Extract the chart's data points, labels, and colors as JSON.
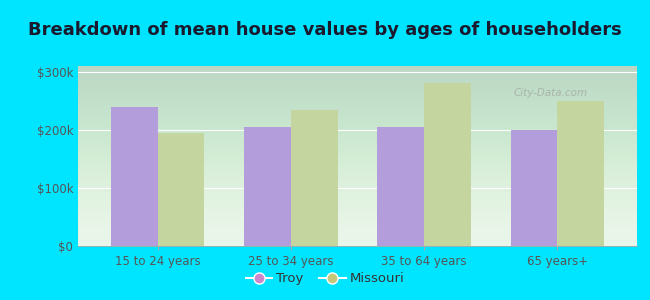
{
  "title": "Breakdown of mean house values by ages of householders",
  "categories": [
    "15 to 24 years",
    "25 to 34 years",
    "35 to 64 years",
    "65 years+"
  ],
  "troy_values": [
    240000,
    205000,
    205000,
    200000
  ],
  "missouri_values": [
    195000,
    235000,
    280000,
    250000
  ],
  "troy_color": "#b39ddb",
  "missouri_color": "#c5d5a0",
  "background_color": "#e8f5e9",
  "outer_background": "#00e5ff",
  "ylim": [
    0,
    310000
  ],
  "yticks": [
    0,
    100000,
    200000,
    300000
  ],
  "ytick_labels": [
    "$0",
    "$100k",
    "$200k",
    "$300k"
  ],
  "title_fontsize": 13,
  "legend_labels": [
    "Troy",
    "Missouri"
  ],
  "legend_marker_troy": "#cc88cc",
  "legend_marker_missouri": "#c5c87a",
  "bar_width": 0.35,
  "watermark_text": "City-Data.com"
}
